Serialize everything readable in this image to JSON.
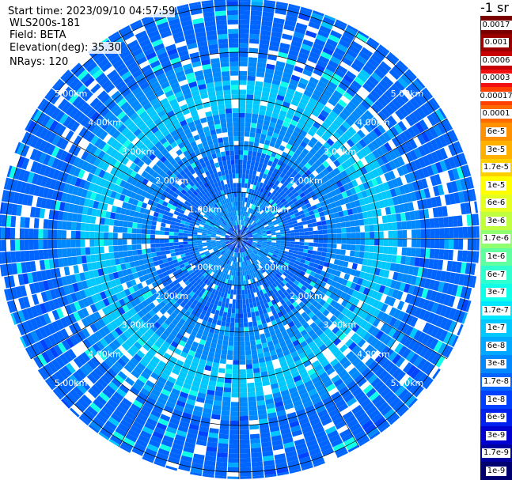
{
  "info": {
    "start_time": "Start time: 2023/09/10 04:57:59",
    "instrument": "WLS200s-181",
    "field": "Field: BETA",
    "elevation": "Elevation(deg): 35.30",
    "nrays": "NRays: 120"
  },
  "colorbar": {
    "unit_label": "-1 sr",
    "labels": [
      "0.0017",
      "0.001",
      "0.0006",
      "0.0003",
      "0.00017",
      "0.0001",
      "6e-5",
      "3e-5",
      "1.7e-5",
      "1e-5",
      "6e-6",
      "3e-6",
      "1.7e-6",
      "1e-6",
      "6e-7",
      "3e-7",
      "1.7e-7",
      "1e-7",
      "6e-8",
      "3e-8",
      "1.7e-8",
      "1e-8",
      "6e-9",
      "3e-9",
      "1.7e-9",
      "1e-9"
    ],
    "colors": [
      "#7a0000",
      "#9a0000",
      "#c80000",
      "#f01010",
      "#ff4000",
      "#ff6a00",
      "#ff9000",
      "#ffb000",
      "#ffd000",
      "#ffff00",
      "#e4ff20",
      "#c0ff40",
      "#90ff70",
      "#60ffa0",
      "#30ffd0",
      "#10ffe8",
      "#00e8ff",
      "#00c8ff",
      "#00a8ff",
      "#0088ff",
      "#0064ff",
      "#0040ff",
      "#0020f0",
      "#0000d0",
      "#0000a0",
      "#000070"
    ]
  },
  "chart_data": {
    "type": "heatmap",
    "projection": "polar PPI",
    "field": "BETA",
    "n_rays": 120,
    "elevation_deg": 35.3,
    "range_rings_km": [
      1,
      2,
      3,
      4,
      5
    ],
    "ring_labels": [
      "1.00km",
      "2.00km",
      "3.00km",
      "4.00km",
      "5.00km"
    ],
    "value_bands": [
      {
        "range_km": [
          0.0,
          0.3
        ],
        "value": "1e-8"
      },
      {
        "range_km": [
          0.3,
          1.0
        ],
        "value": "3e-8"
      },
      {
        "range_km": [
          1.0,
          1.9
        ],
        "value": "1.7e-8"
      },
      {
        "range_km": [
          1.9,
          2.7
        ],
        "value": "3e-8"
      },
      {
        "range_km": [
          2.7,
          3.4
        ],
        "value": "1e-7"
      },
      {
        "range_km": [
          3.4,
          3.9
        ],
        "value": "3e-8"
      },
      {
        "range_km": [
          3.9,
          5.3
        ],
        "value": "1.7e-8"
      }
    ]
  }
}
